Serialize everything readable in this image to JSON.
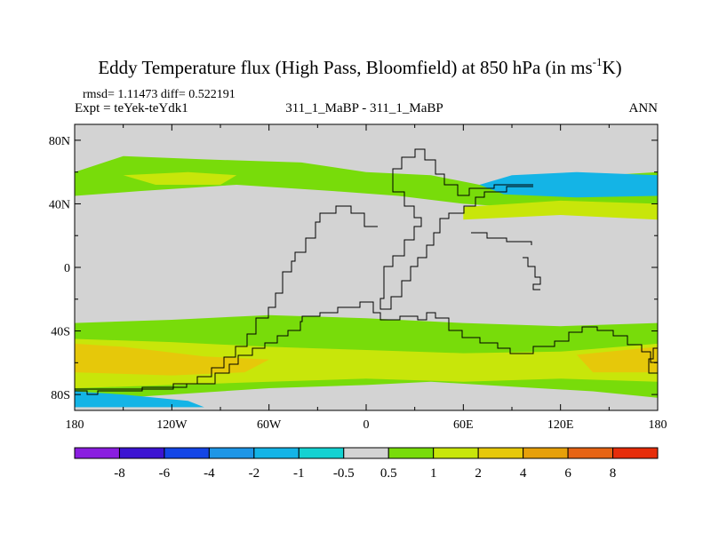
{
  "chart_data": {
    "type": "heatmap",
    "title": "Eddy Temperature flux (High Pass, Bloomfield) at 850 hPa (in ms",
    "title_superscript": "-1",
    "title_suffix": "K)",
    "stats_label": "rmsd= 1.11473  diff= 0.522191",
    "expt_label": "Expt = teYek-teYdk1",
    "case_label": "311_1_MaBP - 311_1_MaBP",
    "season_label": "ANN",
    "x_ticks": [
      "180",
      "120W",
      "60W",
      "0",
      "60E",
      "120E",
      "180"
    ],
    "x_tick_values": [
      -180,
      -120,
      -60,
      0,
      60,
      120,
      180
    ],
    "y_ticks": [
      "80N",
      "40N",
      "0",
      "40S",
      "80S"
    ],
    "y_tick_values": [
      80,
      40,
      0,
      -40,
      -80
    ],
    "xlim": [
      -180,
      180
    ],
    "ylim": [
      -90,
      90
    ],
    "colorbar_levels": [
      "-8",
      "-6",
      "-4",
      "-2",
      "-1",
      "-0.5",
      "0.5",
      "1",
      "2",
      "4",
      "6",
      "8"
    ],
    "colorbar_colors": [
      "#8a1ee0",
      "#3c14d2",
      "#1446e6",
      "#1e96e6",
      "#14b4e6",
      "#14d2d2",
      "#d3d3d3",
      "#78dc0a",
      "#c8e60a",
      "#e6c80a",
      "#e6a00a",
      "#e66414",
      "#e62d0a"
    ],
    "regions": [
      {
        "name": "nh-band-green",
        "level": 0.8,
        "coords": [
          [
            -180,
            60
          ],
          [
            -150,
            70
          ],
          [
            -100,
            68
          ],
          [
            -40,
            66
          ],
          [
            0,
            60
          ],
          [
            40,
            58
          ],
          [
            70,
            52
          ],
          [
            100,
            55
          ],
          [
            180,
            60
          ],
          [
            180,
            35
          ],
          [
            120,
            36
          ],
          [
            60,
            40
          ],
          [
            20,
            45
          ],
          [
            -20,
            48
          ],
          [
            -80,
            52
          ],
          [
            -140,
            48
          ],
          [
            -180,
            45
          ]
        ]
      },
      {
        "name": "nh-band-yellow",
        "level": 1.5,
        "coords": [
          [
            -150,
            58
          ],
          [
            -110,
            60
          ],
          [
            -80,
            58
          ],
          [
            -90,
            52
          ],
          [
            -130,
            52
          ]
        ]
      },
      {
        "name": "nh-pacific-yellow",
        "level": 1.5,
        "coords": [
          [
            60,
            30
          ],
          [
            120,
            33
          ],
          [
            180,
            30
          ],
          [
            180,
            40
          ],
          [
            120,
            42
          ],
          [
            60,
            38
          ]
        ]
      },
      {
        "name": "nh-pacific-cyan",
        "level": -1.5,
        "coords": [
          [
            70,
            52
          ],
          [
            90,
            58
          ],
          [
            130,
            60
          ],
          [
            180,
            58
          ],
          [
            180,
            45
          ],
          [
            130,
            44
          ],
          [
            85,
            46
          ]
        ]
      },
      {
        "name": "sh-band-green",
        "level": 0.8,
        "coords": [
          [
            -180,
            -35
          ],
          [
            -120,
            -33
          ],
          [
            -60,
            -30
          ],
          [
            0,
            -32
          ],
          [
            60,
            -35
          ],
          [
            120,
            -37
          ],
          [
            180,
            -35
          ],
          [
            180,
            -82
          ],
          [
            140,
            -78
          ],
          [
            90,
            -75
          ],
          [
            40,
            -72
          ],
          [
            0,
            -74
          ],
          [
            -60,
            -76
          ],
          [
            -120,
            -80
          ],
          [
            -180,
            -84
          ]
        ]
      },
      {
        "name": "sh-band-yellow",
        "level": 1.5,
        "coords": [
          [
            -180,
            -45
          ],
          [
            -120,
            -47
          ],
          [
            -60,
            -50
          ],
          [
            0,
            -52
          ],
          [
            60,
            -54
          ],
          [
            120,
            -53
          ],
          [
            180,
            -48
          ],
          [
            180,
            -72
          ],
          [
            120,
            -70
          ],
          [
            60,
            -72
          ],
          [
            0,
            -70
          ],
          [
            -60,
            -72
          ],
          [
            -120,
            -74
          ],
          [
            -180,
            -76
          ]
        ]
      },
      {
        "name": "sh-band-orange",
        "level": 3,
        "coords": [
          [
            -180,
            -48
          ],
          [
            -150,
            -50
          ],
          [
            -100,
            -56
          ],
          [
            -60,
            -58
          ],
          [
            -75,
            -66
          ],
          [
            -120,
            -68
          ],
          [
            -180,
            -66
          ]
        ]
      },
      {
        "name": "sh-pacific-orange",
        "level": 3,
        "coords": [
          [
            130,
            -55
          ],
          [
            180,
            -50
          ],
          [
            180,
            -66
          ],
          [
            140,
            -66
          ]
        ]
      },
      {
        "name": "antarctic-cyan",
        "level": -1.5,
        "coords": [
          [
            -180,
            -78
          ],
          [
            -150,
            -80
          ],
          [
            -110,
            -84
          ],
          [
            -100,
            -88
          ],
          [
            -180,
            -88
          ]
        ]
      }
    ]
  }
}
